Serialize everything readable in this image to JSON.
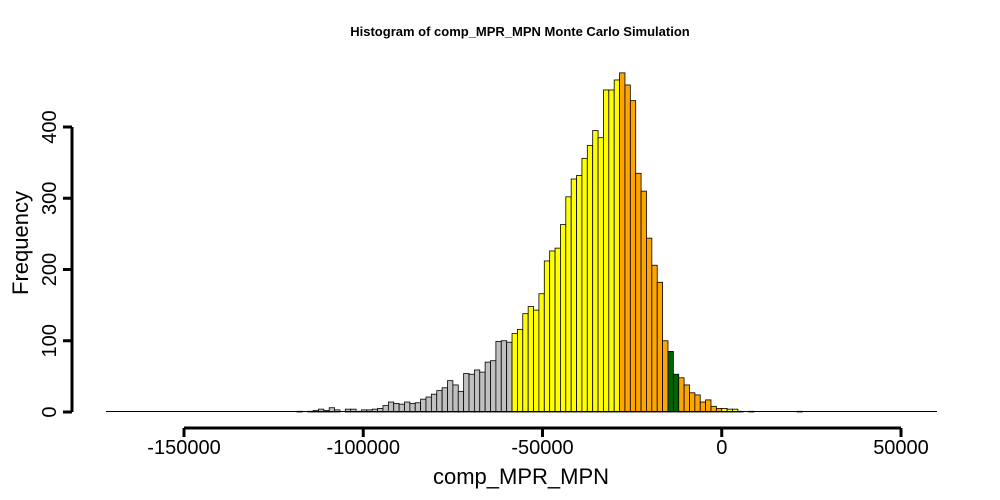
{
  "chart_data": {
    "type": "bar",
    "title": "Histogram of  comp_MPR_MPN  Monte Carlo Simulation",
    "xlabel": "comp_MPR_MPN",
    "ylabel": "Frequency",
    "xlim": [
      -170000,
      52000
    ],
    "ylim": [
      0,
      475
    ],
    "xticks": [
      -150000,
      -100000,
      -50000,
      0,
      50000
    ],
    "xtick_labels": [
      "-150000",
      "-100000",
      "-50000",
      "0",
      "50000"
    ],
    "yticks": [
      0,
      100,
      200,
      300,
      400
    ],
    "ytick_labels": [
      "0",
      "100",
      "200",
      "300",
      "400"
    ],
    "grid": false,
    "legend": "none",
    "bin_width": 1500,
    "bin_start": -118500,
    "counts": [
      1,
      0,
      1,
      2,
      4,
      2,
      6,
      3,
      0,
      4,
      4,
      1,
      3,
      3,
      4,
      5,
      9,
      14,
      12,
      11,
      14,
      12,
      13,
      18,
      21,
      25,
      30,
      34,
      44,
      38,
      29,
      54,
      53,
      59,
      56,
      70,
      72,
      99,
      100,
      98,
      110,
      116,
      138,
      148,
      143,
      166,
      212,
      226,
      230,
      263,
      302,
      327,
      332,
      356,
      374,
      395,
      385,
      452,
      452,
      466,
      476,
      459,
      437,
      335,
      310,
      244,
      206,
      182,
      100,
      85,
      53,
      48,
      38,
      27,
      24,
      14,
      17,
      8,
      5,
      5,
      4,
      4,
      1,
      0,
      1,
      0,
      0,
      0,
      0,
      0,
      0,
      0,
      0,
      1
    ],
    "colored_ranges": [
      {
        "from": -119000,
        "to": -59000,
        "color": "#c0c0c0"
      },
      {
        "from": -59000,
        "to": -29000,
        "color": "#ffff00"
      },
      {
        "from": -29000,
        "to": -15000,
        "color": "#ffa500"
      },
      {
        "from": -15000,
        "to": -12000,
        "color": "#006400"
      },
      {
        "from": -12000,
        "to": 0,
        "color": "#ffa500"
      },
      {
        "from": 0,
        "to": 10500,
        "color": "#ffff00"
      },
      {
        "from": 10500,
        "to": 53000,
        "color": "#c0c0c0"
      }
    ]
  }
}
